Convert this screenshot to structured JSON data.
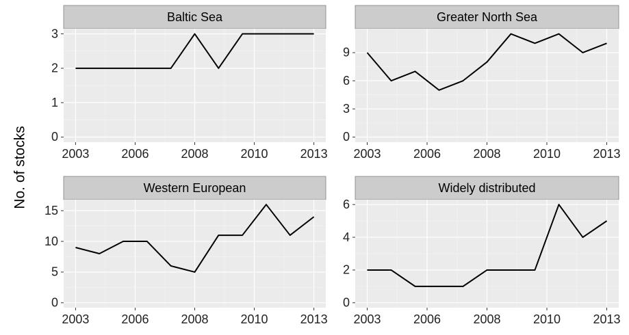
{
  "y_label": "No. of stocks",
  "chart_data": [
    {
      "type": "line",
      "title": "Baltic Sea",
      "x": [
        2003,
        2004,
        2005,
        2006,
        2007,
        2008,
        2009,
        2010,
        2011,
        2012,
        2013
      ],
      "series": [
        {
          "color": "#000000",
          "values": [
            2,
            2,
            2,
            2,
            2,
            3,
            2,
            3,
            3,
            3,
            3
          ]
        }
      ],
      "xlim": [
        2002.5,
        2013.5
      ],
      "xticks": [
        2003,
        {
          "value": 2005.5,
          "label": "2006"
        },
        2008,
        {
          "value": 2010.5,
          "label": "2010"
        },
        2013
      ],
      "ylim": [
        -0.15,
        3.15
      ],
      "yticks": [
        0,
        1,
        2,
        3
      ],
      "grid": true
    },
    {
      "type": "line",
      "title": "Greater North Sea",
      "x": [
        2003,
        2004,
        2005,
        2006,
        2007,
        2008,
        2009,
        2010,
        2011,
        2012,
        2013
      ],
      "series": [
        {
          "color": "#000000",
          "values": [
            9,
            6,
            7,
            5,
            6,
            8,
            11,
            10,
            11,
            9,
            10
          ]
        }
      ],
      "xlim": [
        2002.5,
        2013.5
      ],
      "xticks": [
        2003,
        {
          "value": 2005.5,
          "label": "2006"
        },
        2008,
        {
          "value": 2010.5,
          "label": "2010"
        },
        2013
      ],
      "ylim": [
        -0.55,
        11.55
      ],
      "yticks": [
        0,
        3,
        6,
        9
      ],
      "grid": true
    },
    {
      "type": "line",
      "title": "Western European",
      "x": [
        2003,
        2004,
        2005,
        2006,
        2007,
        2008,
        2009,
        2010,
        2011,
        2012,
        2013
      ],
      "series": [
        {
          "color": "#000000",
          "values": [
            9,
            8,
            10,
            10,
            6,
            5,
            11,
            11,
            16,
            11,
            14
          ]
        }
      ],
      "xlim": [
        2002.5,
        2013.5
      ],
      "xticks": [
        2003,
        {
          "value": 2005.5,
          "label": "2006"
        },
        2008,
        {
          "value": 2010.5,
          "label": "2010"
        },
        2013
      ],
      "ylim": [
        -0.8,
        16.8
      ],
      "yticks": [
        0,
        5,
        10,
        15
      ],
      "grid": true
    },
    {
      "type": "line",
      "title": "Widely distributed",
      "x": [
        2003,
        2004,
        2005,
        2006,
        2007,
        2008,
        2009,
        2010,
        2011,
        2012,
        2013
      ],
      "series": [
        {
          "color": "#000000",
          "values": [
            2,
            2,
            1,
            1,
            1,
            2,
            2,
            2,
            6,
            4,
            5
          ]
        }
      ],
      "xlim": [
        2002.5,
        2013.5
      ],
      "xticks": [
        2003,
        {
          "value": 2005.5,
          "label": "2006"
        },
        2008,
        {
          "value": 2010.5,
          "label": "2010"
        },
        2013
      ],
      "ylim": [
        -0.3,
        6.3
      ],
      "yticks": [
        0,
        2,
        4,
        6
      ],
      "grid": true
    }
  ]
}
